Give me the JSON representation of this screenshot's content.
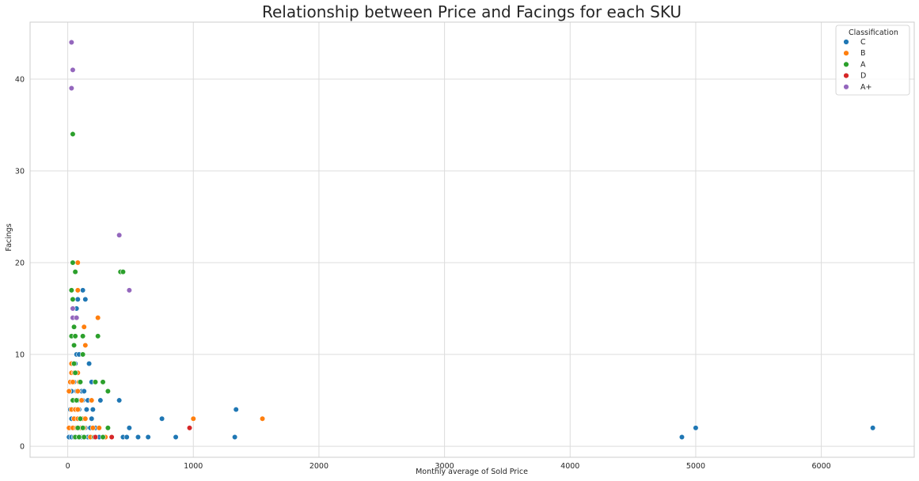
{
  "chart_data": {
    "type": "scatter",
    "title": "Relationship between Price and Facings for each SKU",
    "xlabel": "Monthly average of Sold Price",
    "ylabel": "Facings",
    "xlim": [
      -300,
      6740
    ],
    "ylim": [
      -1.2,
      46.2
    ],
    "xticks": [
      0,
      1000,
      2000,
      3000,
      4000,
      5000,
      6000
    ],
    "yticks": [
      0,
      10,
      20,
      30,
      40
    ],
    "grid": true,
    "legend": {
      "title": "Classification",
      "placement": "top-right"
    },
    "series": [
      {
        "name": "C",
        "color": "#1f77b4",
        "points": [
          [
            10,
            1
          ],
          [
            30,
            1
          ],
          [
            50,
            1
          ],
          [
            70,
            1
          ],
          [
            90,
            1
          ],
          [
            110,
            1
          ],
          [
            130,
            1
          ],
          [
            160,
            1
          ],
          [
            200,
            1
          ],
          [
            250,
            1
          ],
          [
            300,
            1
          ],
          [
            20,
            2
          ],
          [
            40,
            2
          ],
          [
            60,
            2
          ],
          [
            80,
            2
          ],
          [
            100,
            2
          ],
          [
            140,
            2
          ],
          [
            180,
            2
          ],
          [
            220,
            2
          ],
          [
            30,
            3
          ],
          [
            60,
            3
          ],
          [
            110,
            3
          ],
          [
            140,
            3
          ],
          [
            190,
            3
          ],
          [
            20,
            4
          ],
          [
            50,
            4
          ],
          [
            90,
            4
          ],
          [
            150,
            4
          ],
          [
            200,
            4
          ],
          [
            40,
            5
          ],
          [
            80,
            5
          ],
          [
            120,
            5
          ],
          [
            160,
            5
          ],
          [
            260,
            5
          ],
          [
            410,
            5
          ],
          [
            30,
            6
          ],
          [
            70,
            6
          ],
          [
            110,
            6
          ],
          [
            130,
            6
          ],
          [
            50,
            7
          ],
          [
            100,
            7
          ],
          [
            190,
            7
          ],
          [
            60,
            8
          ],
          [
            80,
            8
          ],
          [
            60,
            9
          ],
          [
            170,
            9
          ],
          [
            70,
            10
          ],
          [
            90,
            10
          ],
          [
            70,
            15
          ],
          [
            80,
            16
          ],
          [
            140,
            16
          ],
          [
            120,
            17
          ],
          [
            440,
            1
          ],
          [
            470,
            1
          ],
          [
            560,
            1
          ],
          [
            640,
            1
          ],
          [
            860,
            1
          ],
          [
            1330,
            1
          ],
          [
            4890,
            1
          ],
          [
            490,
            2
          ],
          [
            5000,
            2
          ],
          [
            6410,
            2
          ],
          [
            750,
            3
          ],
          [
            1340,
            4
          ]
        ]
      },
      {
        "name": "B",
        "color": "#ff7f0e",
        "points": [
          [
            10,
            2
          ],
          [
            40,
            2
          ],
          [
            70,
            2
          ],
          [
            100,
            2
          ],
          [
            130,
            2
          ],
          [
            180,
            1
          ],
          [
            200,
            2
          ],
          [
            250,
            2
          ],
          [
            300,
            1
          ],
          [
            50,
            3
          ],
          [
            80,
            3
          ],
          [
            100,
            3
          ],
          [
            120,
            3
          ],
          [
            140,
            3
          ],
          [
            30,
            4
          ],
          [
            60,
            4
          ],
          [
            80,
            4
          ],
          [
            50,
            5
          ],
          [
            110,
            5
          ],
          [
            190,
            5
          ],
          [
            10,
            6
          ],
          [
            80,
            6
          ],
          [
            20,
            7
          ],
          [
            40,
            7
          ],
          [
            90,
            7
          ],
          [
            30,
            8
          ],
          [
            50,
            8
          ],
          [
            80,
            8
          ],
          [
            30,
            9
          ],
          [
            140,
            11
          ],
          [
            130,
            13
          ],
          [
            240,
            14
          ],
          [
            80,
            17
          ],
          [
            80,
            20
          ],
          [
            1000,
            3
          ],
          [
            1550,
            3
          ]
        ]
      },
      {
        "name": "A",
        "color": "#2ca02c",
        "points": [
          [
            60,
            1
          ],
          [
            90,
            1
          ],
          [
            130,
            1
          ],
          [
            210,
            1
          ],
          [
            280,
            1
          ],
          [
            80,
            2
          ],
          [
            120,
            2
          ],
          [
            320,
            2
          ],
          [
            100,
            3
          ],
          [
            40,
            5
          ],
          [
            70,
            5
          ],
          [
            320,
            6
          ],
          [
            100,
            7
          ],
          [
            220,
            7
          ],
          [
            280,
            7
          ],
          [
            60,
            8
          ],
          [
            50,
            9
          ],
          [
            120,
            10
          ],
          [
            50,
            11
          ],
          [
            30,
            12
          ],
          [
            60,
            12
          ],
          [
            120,
            12
          ],
          [
            240,
            12
          ],
          [
            50,
            13
          ],
          [
            40,
            16
          ],
          [
            30,
            17
          ],
          [
            60,
            19
          ],
          [
            40,
            20
          ],
          [
            420,
            19
          ],
          [
            440,
            19
          ],
          [
            40,
            34
          ]
        ]
      },
      {
        "name": "D",
        "color": "#d62728",
        "points": [
          [
            220,
            1
          ],
          [
            350,
            1
          ],
          [
            970,
            2
          ]
        ]
      },
      {
        "name": "A+",
        "color": "#9467bd",
        "points": [
          [
            40,
            14
          ],
          [
            70,
            14
          ],
          [
            40,
            15
          ],
          [
            490,
            17
          ],
          [
            410,
            23
          ],
          [
            30,
            39
          ],
          [
            40,
            41
          ],
          [
            30,
            44
          ]
        ]
      }
    ]
  }
}
